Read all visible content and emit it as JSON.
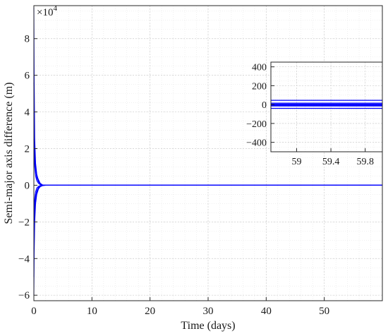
{
  "chart_data": [
    {
      "type": "line",
      "xlabel": "Time (days)",
      "ylabel": "Semi-major axis difference (m)",
      "y_multiplier_label": "×10",
      "y_multiplier_exponent": "4",
      "xlim": [
        0,
        60
      ],
      "ylim": [
        -6.3,
        9.8
      ],
      "x_ticks": [
        0,
        10,
        20,
        30,
        40,
        50
      ],
      "y_ticks": [
        -6,
        -4,
        -2,
        0,
        2,
        4,
        6,
        8
      ],
      "grid": true,
      "color": "#0000ff",
      "series": [
        {
          "x": [
            0,
            0.05,
            0.15,
            0.3,
            0.5,
            0.8,
            1.1,
            1.5,
            2.0,
            60
          ],
          "values": [
            9.7,
            6.0,
            2.5,
            1.2,
            0.6,
            0.25,
            0.1,
            0.02,
            0,
            0
          ]
        },
        {
          "x": [
            0,
            0.05,
            0.15,
            0.3,
            0.5,
            0.8,
            1.1,
            1.5,
            2.0,
            60
          ],
          "values": [
            -6.0,
            -3.8,
            -2.0,
            -1.0,
            -0.5,
            -0.2,
            -0.08,
            -0.02,
            0,
            0
          ]
        },
        {
          "x": [
            0,
            0.05,
            0.15,
            0.3,
            0.5,
            0.8,
            1.1,
            1.5,
            2.0,
            60
          ],
          "values": [
            5.6,
            3.8,
            2.0,
            1.0,
            0.5,
            0.3,
            0.1,
            0.02,
            0,
            0
          ]
        },
        {
          "x": [
            0,
            0.05,
            0.15,
            0.3,
            0.5,
            0.8,
            1.1,
            1.5,
            2.0,
            60
          ],
          "values": [
            -5.0,
            -3.0,
            -1.5,
            -0.8,
            -0.4,
            -0.15,
            -0.05,
            -0.01,
            0,
            0
          ]
        },
        {
          "x": [
            0,
            0.05,
            0.15,
            0.3,
            0.5,
            0.8,
            1.1,
            1.5,
            2.0,
            60
          ],
          "values": [
            4.0,
            2.8,
            1.5,
            0.8,
            0.4,
            0.18,
            0.06,
            0.01,
            0,
            0
          ]
        },
        {
          "x": [
            0,
            0.05,
            0.15,
            0.3,
            0.5,
            0.8,
            1.1,
            1.5,
            2.0,
            60
          ],
          "values": [
            -3.5,
            -2.2,
            -1.2,
            -0.6,
            -0.3,
            -0.1,
            -0.04,
            -0.01,
            0,
            0
          ]
        },
        {
          "x": [
            0,
            0.05,
            0.15,
            0.3,
            0.5,
            0.8,
            1.1,
            1.5,
            2.0,
            60
          ],
          "values": [
            2.5,
            1.8,
            1.0,
            0.5,
            0.25,
            0.1,
            0.03,
            0.01,
            0,
            0
          ]
        },
        {
          "x": [
            0,
            0.05,
            0.15,
            0.3,
            0.5,
            0.8,
            1.1,
            1.5,
            2.0,
            60
          ],
          "values": [
            -2.0,
            -1.3,
            -0.7,
            -0.35,
            -0.15,
            -0.06,
            -0.02,
            0,
            0,
            0
          ]
        }
      ]
    },
    {
      "type": "line",
      "xlim": [
        58.7,
        60
      ],
      "ylim": [
        -500,
        450
      ],
      "x_ticks": [
        59,
        59.4,
        59.8
      ],
      "x_tick_labels": [
        "59",
        "59.4",
        "59.8"
      ],
      "y_ticks": [
        -400,
        -200,
        0,
        200,
        400
      ],
      "grid": true,
      "color": "#0000ff",
      "series": [
        {
          "x": [
            58.7,
            60
          ],
          "values": [
            45,
            45
          ]
        },
        {
          "x": [
            58.7,
            60
          ],
          "values": [
            15,
            15
          ]
        },
        {
          "x": [
            58.7,
            60
          ],
          "values": [
            5,
            5
          ]
        },
        {
          "x": [
            58.7,
            60
          ],
          "values": [
            -5,
            -5
          ]
        },
        {
          "x": [
            58.7,
            60
          ],
          "values": [
            -15,
            -15
          ]
        },
        {
          "x": [
            58.7,
            60
          ],
          "values": [
            -40,
            -40
          ]
        }
      ]
    }
  ]
}
